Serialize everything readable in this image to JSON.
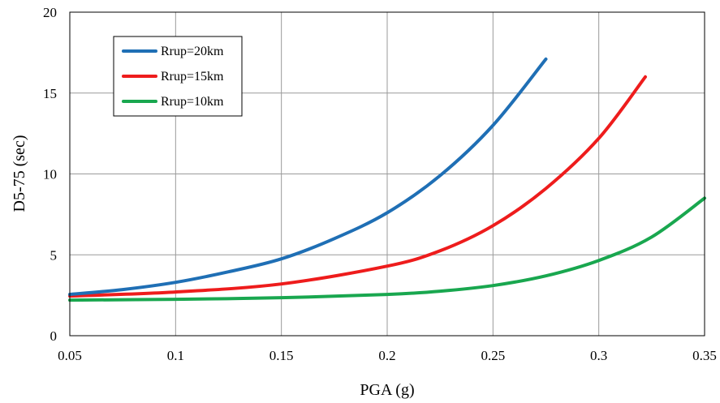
{
  "chart_data": {
    "type": "line",
    "title": "",
    "xlabel": "PGA (g)",
    "ylabel": "D5-75 (sec)",
    "xlim": [
      0.05,
      0.35
    ],
    "ylim": [
      0,
      20
    ],
    "x_ticks": [
      "0.05",
      "0.1",
      "0.15",
      "0.2",
      "0.25",
      "0.3",
      "0.35"
    ],
    "y_ticks": [
      "0",
      "5",
      "10",
      "15",
      "20"
    ],
    "grid": true,
    "legend_position": "top-left",
    "series": [
      {
        "name": "Rrup=20km",
        "color": "#1f6fb5",
        "x": [
          0.05,
          0.075,
          0.1,
          0.125,
          0.15,
          0.175,
          0.2,
          0.225,
          0.25,
          0.275
        ],
        "y": [
          2.55,
          2.85,
          3.3,
          3.95,
          4.75,
          6.0,
          7.6,
          9.9,
          13.0,
          17.1
        ]
      },
      {
        "name": "Rrup=15km",
        "color": "#ee1c1c",
        "x": [
          0.05,
          0.1,
          0.15,
          0.2,
          0.225,
          0.25,
          0.275,
          0.3,
          0.322
        ],
        "y": [
          2.45,
          2.7,
          3.2,
          4.3,
          5.25,
          6.8,
          9.1,
          12.2,
          16.0
        ]
      },
      {
        "name": "Rrup=10km",
        "color": "#19a74f",
        "x": [
          0.05,
          0.1,
          0.15,
          0.2,
          0.225,
          0.25,
          0.275,
          0.3,
          0.325,
          0.35
        ],
        "y": [
          2.2,
          2.25,
          2.35,
          2.55,
          2.75,
          3.1,
          3.7,
          4.65,
          6.1,
          8.5
        ]
      }
    ]
  }
}
